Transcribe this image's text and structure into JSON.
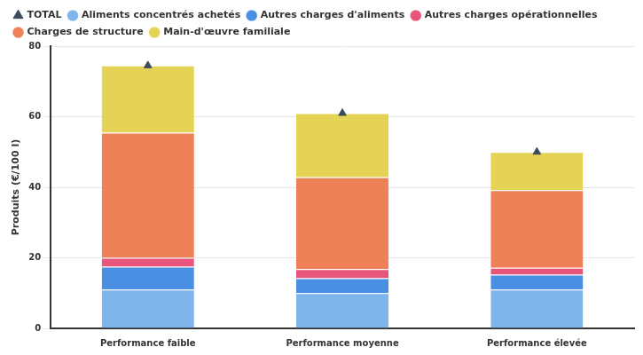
{
  "chart_data": {
    "type": "bar",
    "y_label": "Produits (€/100 l)",
    "categories": [
      "Performance faible",
      "Performance moyenne",
      "Performance élevée"
    ],
    "series": [
      {
        "name": "Aliments concentrés achetés",
        "color": "#7eb6ec",
        "values": [
          11,
          10,
          11
        ]
      },
      {
        "name": "Autres charges d'aliments",
        "color": "#4a90e2",
        "values": [
          6.5,
          4.2,
          4.2
        ]
      },
      {
        "name": "Autres charges opérationnelles",
        "color": "#e8557a",
        "values": [
          2.5,
          2.6,
          2
        ]
      },
      {
        "name": "Charges de structure",
        "color": "#ef8159",
        "values": [
          35.5,
          26,
          22
        ]
      },
      {
        "name": "Main-d'œuvre familiale",
        "color": "#e5d356",
        "values": [
          19,
          18.2,
          10.8
        ]
      },
      {
        "name": "TOTAL",
        "color": "#3d4c5c",
        "type": "line",
        "marker": "triangle",
        "values": [
          74.5,
          61,
          50
        ]
      }
    ],
    "ylim": [
      0,
      80
    ],
    "yticks": [
      0,
      20,
      40,
      60,
      80
    ],
    "stacked": true,
    "grid": true,
    "legend": "top"
  }
}
